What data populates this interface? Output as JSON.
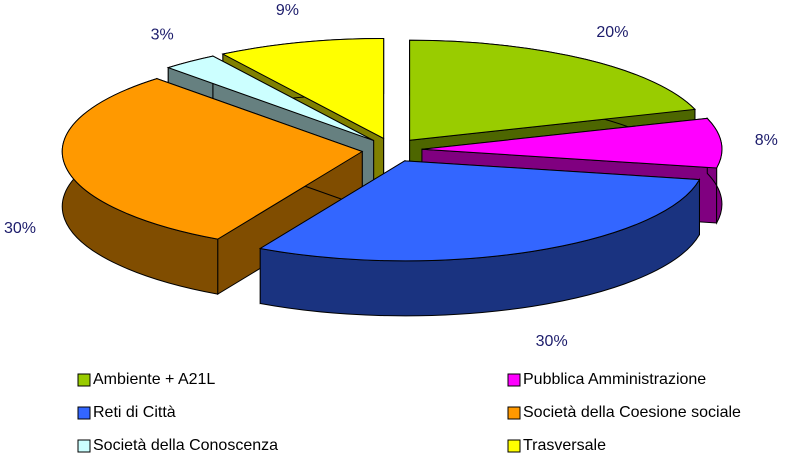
{
  "chart_data": {
    "type": "pie3d",
    "categories": [
      "Ambiente + A21L",
      "Pubblica Amministrazione",
      "Reti di Città",
      "Società della Coesione sociale",
      "Società della Conoscenza",
      "Trasversale"
    ],
    "values": [
      20,
      8,
      30,
      30,
      3,
      9
    ],
    "value_labels": [
      "20%",
      "8%",
      "30%",
      "30%",
      "3%",
      "9%"
    ],
    "colors": [
      "#99cc00",
      "#ff00ff",
      "#3366ff",
      "#ff9900",
      "#ccffff",
      "#ffff00"
    ],
    "legend": "bottom"
  }
}
